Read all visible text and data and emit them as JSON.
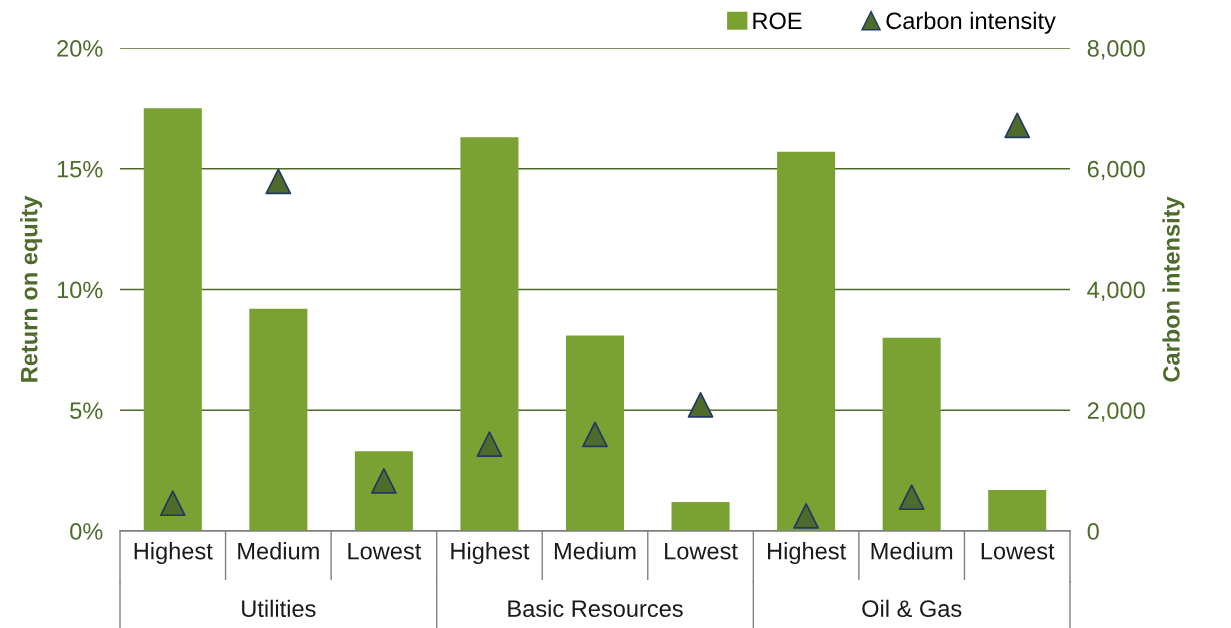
{
  "chart_data": {
    "type": "bar",
    "xlabel": null,
    "ylabel": "Return on equity",
    "y2label": "Carbon intensity",
    "categories": [
      "Highest",
      "Medium",
      "Lowest",
      "Highest",
      "Medium",
      "Lowest",
      "Highest",
      "Medium",
      "Lowest"
    ],
    "annotations": [
      "Utilities",
      "Basic Resources",
      "Oil & Gas"
    ],
    "series": [
      {
        "name": "ROE",
        "color": "#7aa232",
        "values": [
          17.5,
          9.2,
          3.3,
          16.3,
          8.1,
          1.2,
          15.7,
          8.0,
          1.7
        ]
      },
      {
        "name": "Carbon intensity",
        "type": "scatter",
        "axis": "y2",
        "color": "#4f6b2c",
        "marker": "triangle",
        "values": [
          460,
          5790,
          830,
          1440,
          1600,
          2090,
          250,
          560,
          6720
        ]
      }
    ],
    "ylim": [
      0,
      20
    ],
    "yticks": [
      {
        "value": 0,
        "label": "0%"
      },
      {
        "value": 5,
        "label": "5%"
      },
      {
        "value": 10,
        "label": "10%"
      },
      {
        "value": 15,
        "label": "15%"
      },
      {
        "value": 20,
        "label": "20%"
      }
    ],
    "y2lim": [
      0,
      8000
    ],
    "y2ticks": [
      {
        "value": 0,
        "label": "0"
      },
      {
        "value": 2000,
        "label": "2,000"
      },
      {
        "value": 4000,
        "label": "4,000"
      },
      {
        "value": 6000,
        "label": "6,000"
      },
      {
        "value": 8000,
        "label": "8,000"
      }
    ],
    "grid": "y",
    "legend": "top right"
  }
}
